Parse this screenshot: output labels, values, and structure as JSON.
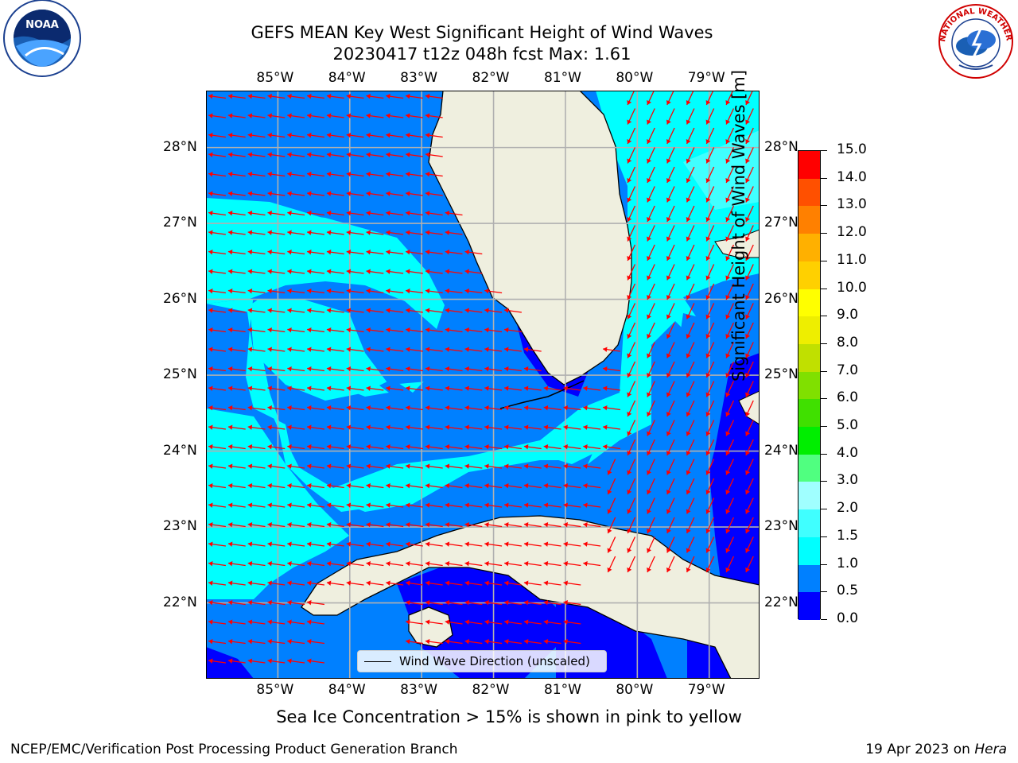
{
  "header": {
    "title_line1": "GEFS MEAN Key West Significant Height of Wind Waves",
    "title_line2": "20230417 t12z 048h fcst   Max: 1.61"
  },
  "logos": {
    "noaa_text": "NOAA",
    "nws_text": "NATIONAL WEATHER SERVICE"
  },
  "map": {
    "lon_ticks": [
      "85°W",
      "84°W",
      "83°W",
      "82°W",
      "81°W",
      "80°W",
      "79°W"
    ],
    "lat_ticks": [
      "28°N",
      "27°N",
      "26°N",
      "25°N",
      "24°N",
      "23°N",
      "22°N"
    ],
    "lon_range": [
      -86.0,
      -78.3
    ],
    "lat_range": [
      21.0,
      28.75
    ],
    "legend_label": "Wind Wave Direction (unscaled)",
    "arrow_color": "#ff0000"
  },
  "colorbar": {
    "title": "Significant Height of Wind Waves [m]",
    "labels": [
      "15.0",
      "14.0",
      "13.0",
      "12.0",
      "11.0",
      "10.0",
      "9.0",
      "8.0",
      "7.0",
      "6.0",
      "5.0",
      "4.0",
      "3.0",
      "2.0",
      "1.5",
      "1.0",
      "0.5",
      "0.0"
    ],
    "levels": [
      0.0,
      0.5,
      1.0,
      1.5,
      2.0,
      3.0,
      4.0,
      5.0,
      6.0,
      7.0,
      8.0,
      9.0,
      10.0,
      11.0,
      12.0,
      13.0,
      14.0,
      15.0
    ],
    "colors": [
      "#0000ff",
      "#0080ff",
      "#00ffff",
      "#40ffff",
      "#a0ffff",
      "#50ff80",
      "#00ee00",
      "#40e000",
      "#80e000",
      "#c0e000",
      "#eeee00",
      "#ffff00",
      "#ffd000",
      "#ffb000",
      "#ff8000",
      "#ff5000",
      "#ff0000"
    ]
  },
  "footer": {
    "sea_ice_note": "Sea Ice Concentration > 15% is shown in pink to yellow",
    "credit": "NCEP/EMC/Verification Post Processing Product Generation Branch",
    "date_prefix": "19 Apr 2023 on",
    "host": "Hera"
  }
}
